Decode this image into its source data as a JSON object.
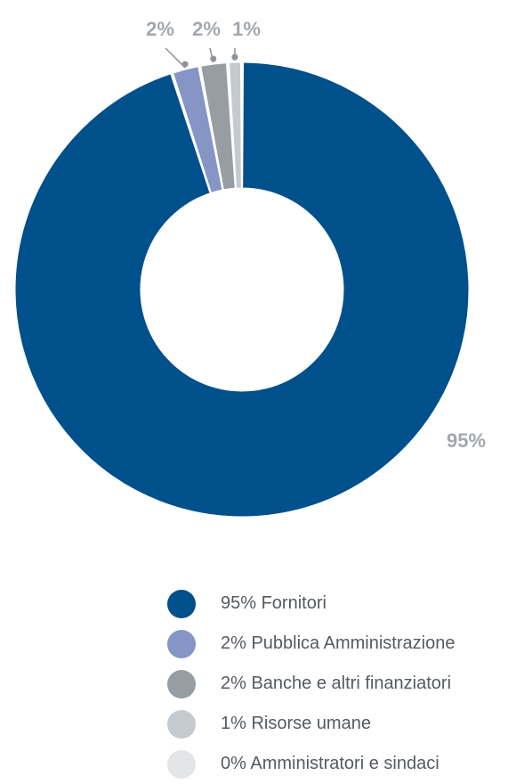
{
  "chart_data": {
    "type": "pie",
    "variant": "donut",
    "slices": [
      {
        "label": "Fornitori",
        "value": 95,
        "display": "95%",
        "legend": "95% Fornitori",
        "color": "#00508c"
      },
      {
        "label": "Pubblica Amministrazione",
        "value": 2,
        "display": "2%",
        "legend": "2% Pubblica Amministrazione",
        "color": "#8595c6"
      },
      {
        "label": "Banche e altri finanziatori",
        "value": 2,
        "display": "2%",
        "legend": "2% Banche e altri finanziatori",
        "color": "#969ea4"
      },
      {
        "label": "Risorse umane",
        "value": 1,
        "display": "1%",
        "legend": "1% Risorse umane",
        "color": "#c5cacf"
      },
      {
        "label": "Amministratori e sindaci",
        "value": 0,
        "display": "0%",
        "legend": "0% Amministratori e sindaci",
        "color": "#e3e5e7"
      }
    ],
    "legend_position": "bottom"
  }
}
